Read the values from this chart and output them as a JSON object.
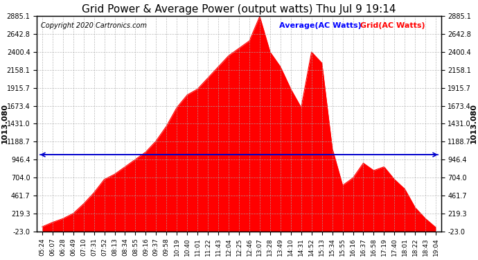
{
  "title": "Grid Power & Average Power (output watts) Thu Jul 9 19:14",
  "copyright": "Copyright 2020 Cartronics.com",
  "legend_avg": "Average(AC Watts)",
  "legend_grid": "Grid(AC Watts)",
  "avg_value": 1013.08,
  "left_label": "1013.080",
  "right_label": "1013.080",
  "ymin": -23.0,
  "ymax": 2885.1,
  "yticks": [
    -23.0,
    219.3,
    461.7,
    704.0,
    946.4,
    1188.7,
    1431.0,
    1673.4,
    1915.7,
    2158.1,
    2400.4,
    2642.8,
    2885.1
  ],
  "xtick_labels": [
    "05:24",
    "06:07",
    "06:28",
    "06:49",
    "07:10",
    "07:31",
    "07:52",
    "08:13",
    "08:34",
    "08:55",
    "09:16",
    "09:37",
    "09:58",
    "10:19",
    "10:40",
    "11:01",
    "11:22",
    "11:43",
    "12:04",
    "12:25",
    "12:46",
    "13:07",
    "13:28",
    "13:49",
    "14:10",
    "14:31",
    "14:52",
    "15:13",
    "15:34",
    "15:55",
    "16:16",
    "16:37",
    "16:58",
    "17:19",
    "17:40",
    "18:01",
    "18:22",
    "18:43",
    "19:04"
  ],
  "profile": [
    40,
    100,
    150,
    220,
    350,
    500,
    680,
    750,
    850,
    950,
    1050,
    1200,
    1400,
    1650,
    1820,
    1900,
    2050,
    2200,
    2350,
    2450,
    2550,
    2880,
    2400,
    2200,
    1900,
    1650,
    2400,
    2250,
    1100,
    600,
    700,
    900,
    800,
    850,
    680,
    550,
    300,
    150,
    30
  ],
  "fill_color": "#ff0000",
  "avg_line_color": "#0000cc",
  "grid_color": "#aaaaaa",
  "bg_color": "#ffffff",
  "title_color": "#000000",
  "copyright_color": "#000000",
  "legend_avg_color": "#0000ff",
  "legend_grid_color": "#ff0000"
}
